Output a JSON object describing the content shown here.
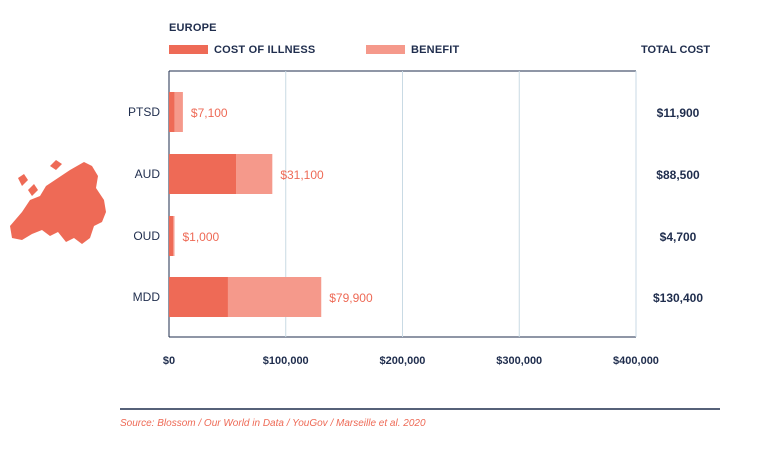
{
  "chart_data": {
    "type": "bar",
    "orientation": "horizontal",
    "stacked": true,
    "title": "EUROPE",
    "categories": [
      "PTSD",
      "AUD",
      "OUD",
      "MDD"
    ],
    "series": [
      {
        "name": "COST OF ILLNESS",
        "values": [
          4800,
          57400,
          3700,
          50500
        ]
      },
      {
        "name": "BENEFIT",
        "values": [
          7100,
          31100,
          1000,
          79900
        ]
      }
    ],
    "benefit_labels": [
      "$7,100",
      "$31,100",
      "$1,000",
      "$79,900"
    ],
    "total_header": "TOTAL COST",
    "totals": [
      11900,
      88500,
      4700,
      130400
    ],
    "total_labels": [
      "$11,900",
      "$88,500",
      "$4,700",
      "$130,400"
    ],
    "xlim": [
      0,
      400000
    ],
    "x_ticks": [
      0,
      100000,
      200000,
      300000,
      400000
    ],
    "x_tick_labels": [
      "$0",
      "$100,000",
      "$200,000",
      "$300,000",
      "$400,000"
    ],
    "xlabel": "",
    "ylabel": "",
    "grid": true,
    "legend_position": "top",
    "source": "Source: Blossom / Our World in Data / YouGov / Marseille et al. 2020",
    "colors": {
      "cost": "#ee6a56",
      "benefit": "#f5998b",
      "text": "#1f2d4d",
      "grid": "#c9dae4",
      "map": "#ee6a56"
    },
    "icon": "europe-map-icon"
  }
}
